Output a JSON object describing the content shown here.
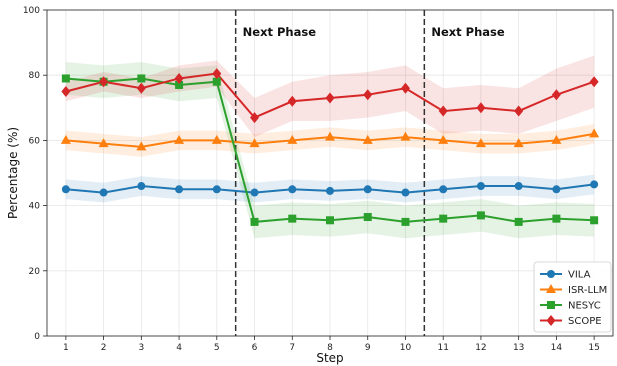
{
  "chart_data": {
    "type": "line",
    "xlabel": "Step",
    "ylabel": "Percentage (%)",
    "xlim": [
      0.5,
      15.5
    ],
    "ylim": [
      0,
      100
    ],
    "x": [
      1,
      2,
      3,
      4,
      5,
      6,
      7,
      8,
      9,
      10,
      11,
      12,
      13,
      14,
      15
    ],
    "yticks": [
      0,
      20,
      40,
      60,
      80,
      100
    ],
    "grid": true,
    "legend_position": "bottom-right",
    "phase_lines": [
      {
        "x": 5.5,
        "label": "Next Phase"
      },
      {
        "x": 10.5,
        "label": "Next Phase"
      }
    ],
    "series": [
      {
        "name": "VILA",
        "color": "#1f77b4",
        "marker": "circle",
        "values": [
          45,
          44,
          46,
          45,
          45,
          44,
          45,
          44.5,
          45,
          44,
          45,
          46,
          46,
          45,
          46.5
        ],
        "band": 3
      },
      {
        "name": "ISR-LLM",
        "color": "#ff7f0e",
        "marker": "triangle",
        "values": [
          60,
          59,
          58,
          60,
          60,
          59,
          60,
          61,
          60,
          61,
          60,
          59,
          59,
          60,
          62
        ],
        "band": 3
      },
      {
        "name": "NESYC",
        "color": "#2ca02c",
        "marker": "square",
        "values": [
          79,
          78,
          79,
          77,
          78,
          35,
          36,
          35.5,
          36.5,
          35,
          36,
          37,
          35,
          36,
          35.5
        ],
        "band": 5
      },
      {
        "name": "SCOPE",
        "color": "#d62728",
        "marker": "diamond",
        "values": [
          75,
          78,
          76,
          79,
          80.5,
          67,
          72,
          73,
          74,
          76,
          69,
          70,
          69,
          74,
          78
        ],
        "band": [
          3,
          3,
          3,
          4,
          4,
          6,
          6,
          7,
          7,
          7,
          7,
          7,
          7,
          8,
          8
        ]
      }
    ]
  }
}
